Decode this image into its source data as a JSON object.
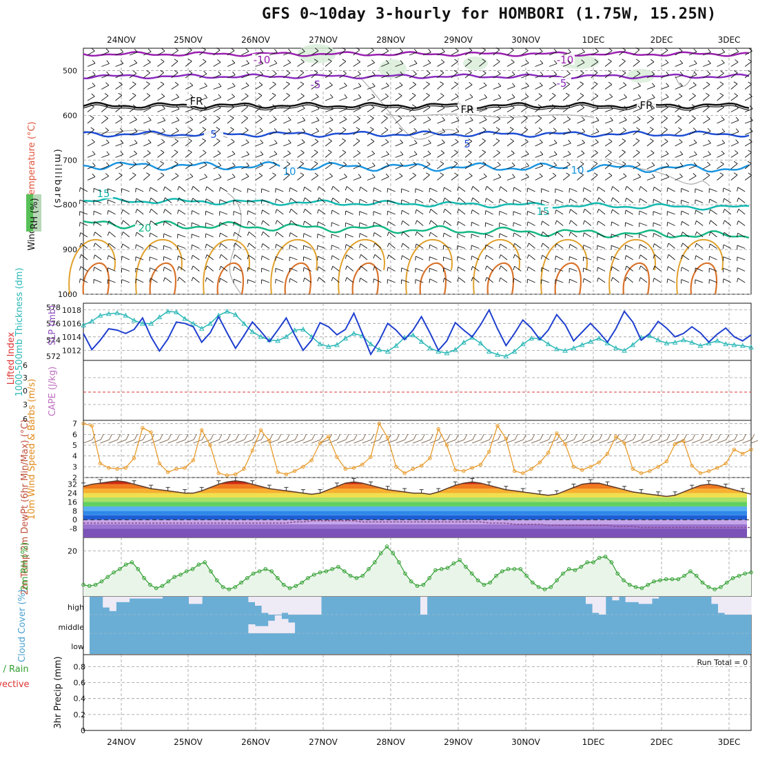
{
  "title": "GFS 0~10day 3-hourly for HOMBORI (1.75W, 15.25N)",
  "dates": [
    "24NOV",
    "25NOV",
    "26NOV",
    "27NOV",
    "28NOV",
    "29NOV",
    "30NOV",
    "1DEC",
    "2DEC",
    "3DEC"
  ],
  "run_total_label": "Run Total = 0",
  "colors": {
    "temp_m10": "#9a1fb0",
    "temp_m5": "#8a2bbf",
    "freezing": "#111111",
    "temp_5": "#1f4fd6",
    "temp_10": "#1b95e0",
    "temp_15": "#13b9b0",
    "temp_20": "#14b884",
    "rh_contour": "#aaaaaa",
    "slp_line": "#1f3fcf",
    "thickness_line": "#2ab7b7",
    "wind_speed_line": "#e89a2a",
    "dewpoint_line": "#8a4a8a",
    "rh2m_line": "#2f9e2f",
    "rh2m_fill": "#eaf5ea",
    "cloud_fill": "#6aaed6",
    "cloud_gap": "#eeeaf6",
    "cape_zero": "#dd3333"
  },
  "chart_data": [
    {
      "panel": "upper-air",
      "type": "contour",
      "ylabel": [
        "Wind (m/s)",
        "Temperature (°C)",
        "RH (%)",
        "(millibars)"
      ],
      "ylim": [
        1000,
        450
      ],
      "yticks": [
        500,
        600,
        700,
        800,
        900,
        1000
      ],
      "contour_labels": [
        {
          "value": "-10",
          "pressure": 470
        },
        {
          "value": "-5",
          "pressure": 515
        },
        {
          "value": "FR",
          "pressure": 580
        },
        {
          "value": "5",
          "pressure": 645
        },
        {
          "value": "10",
          "pressure": 710
        },
        {
          "value": "15",
          "pressure": 785
        },
        {
          "value": "20",
          "pressure": 830
        }
      ]
    },
    {
      "panel": "slp-thickness",
      "type": "line",
      "ylabel_left": "1000-500mb Thickness (dm)",
      "ylabel_right": "SLP (mb)",
      "thickness_ticks": [
        572,
        574,
        576,
        578
      ],
      "thickness_ylim": [
        571.5,
        578.5
      ],
      "slp_ticks": [
        1012,
        1014,
        1016,
        1018
      ],
      "slp_ylim": [
        1010.5,
        1019
      ],
      "slp": [
        1014.5,
        1012.1,
        1013.5,
        1015.2,
        1015.0,
        1014.5,
        1015.1,
        1016.8,
        1014.0,
        1011.9,
        1013.7,
        1016.2,
        1016.0,
        1015.5,
        1013.2,
        1014.6,
        1017.0,
        1014.6,
        1012.3,
        1014.2,
        1016.2,
        1014.8,
        1013.3,
        1015.0,
        1016.8,
        1014.3,
        1012.0,
        1013.5,
        1016.1,
        1015.5,
        1014.3,
        1015.1,
        1017.5,
        1014.5,
        1011.4,
        1013.4,
        1016.0,
        1015.0,
        1013.6,
        1015.0,
        1017.0,
        1014.6,
        1012.0,
        1013.4,
        1016.1,
        1015.0,
        1014.0,
        1015.8,
        1018.0,
        1015.2,
        1012.7,
        1014.5,
        1016.5,
        1015.3,
        1013.6,
        1015.0,
        1017.3,
        1015.8,
        1013.4,
        1014.7,
        1016.0,
        1014.7,
        1013.2,
        1015.2,
        1017.8,
        1016.2,
        1013.5,
        1014.5,
        1016.3,
        1015.3,
        1014.0,
        1014.5,
        1015.5,
        1014.6,
        1013.2,
        1014.4,
        1015.3,
        1014.0,
        1013.4,
        1014.3
      ],
      "thickness": [
        575.8,
        576.3,
        577.0,
        577.2,
        577.3,
        577.0,
        576.4,
        576.0,
        576.0,
        576.8,
        577.5,
        577.4,
        576.6,
        576.0,
        575.4,
        576.0,
        577.0,
        577.5,
        577.1,
        576.0,
        575.0,
        574.4,
        574.0,
        573.9,
        574.4,
        575.2,
        575.3,
        574.4,
        573.5,
        573.2,
        573.4,
        574.2,
        574.8,
        574.5,
        573.5,
        572.8,
        572.6,
        573.3,
        574.3,
        574.6,
        573.8,
        573.0,
        572.6,
        572.4,
        572.8,
        573.7,
        574.3,
        573.6,
        572.6,
        572.2,
        572.0,
        572.6,
        573.5,
        574.2,
        574.2,
        573.5,
        572.9,
        572.7,
        573.0,
        573.4,
        573.8,
        574.2,
        573.6,
        573.0,
        572.7,
        573.4,
        574.3,
        574.5,
        574.0,
        573.6,
        573.7,
        574.0,
        573.7,
        573.3,
        573.6,
        573.9,
        573.5,
        573.4,
        573.3,
        573.1
      ]
    },
    {
      "panel": "li-cape",
      "type": "line",
      "ylabel_left": "Lifted Index",
      "ylabel_right": "CAPE (J/kg)",
      "yticks": [
        "6",
        "3",
        "0",
        "3",
        "6"
      ],
      "ylim": [
        -6,
        6
      ],
      "values": [
        0
      ]
    },
    {
      "panel": "wind10m",
      "type": "line",
      "ylabel": "10m Wind Speed & Barbs (m/s)",
      "yticks": [
        2,
        3,
        4,
        5,
        6,
        7
      ],
      "ylim": [
        2,
        7.3
      ],
      "values": [
        7.0,
        6.8,
        3.3,
        2.9,
        2.8,
        2.9,
        3.8,
        6.6,
        6.2,
        3.3,
        2.5,
        2.8,
        2.9,
        3.6,
        6.4,
        5.0,
        2.4,
        2.2,
        2.3,
        2.8,
        4.5,
        6.4,
        5.4,
        2.5,
        2.3,
        2.6,
        3.0,
        3.6,
        5.2,
        5.8,
        3.9,
        2.8,
        2.9,
        3.2,
        3.9,
        7.0,
        5.7,
        3.0,
        2.4,
        2.8,
        3.1,
        3.8,
        6.5,
        5.0,
        2.7,
        2.6,
        2.9,
        3.2,
        4.4,
        6.8,
        5.6,
        2.6,
        2.4,
        2.8,
        3.4,
        4.3,
        6.1,
        5.1,
        3.0,
        2.7,
        3.0,
        3.4,
        4.2,
        5.8,
        5.2,
        2.8,
        2.4,
        2.6,
        3.0,
        3.5,
        5.1,
        5.4,
        3.1,
        2.4,
        2.6,
        2.9,
        3.3,
        4.6,
        4.2,
        4.6
      ],
      "barb_speed": 5
    },
    {
      "panel": "temp-dewpoint",
      "type": "area",
      "ylabel": "2m Temp 2m DewPt (6hr Min/Max) (°C)",
      "yticks": [
        32,
        24,
        16,
        8,
        0,
        -8
      ],
      "ylim": [
        -16,
        38
      ],
      "temperature": [
        30,
        32,
        33,
        34,
        35,
        34,
        32,
        30,
        28,
        27,
        26,
        25,
        24,
        24,
        26,
        29,
        32,
        34,
        35,
        34,
        32,
        30,
        28,
        27,
        26,
        25,
        24,
        23,
        24,
        27,
        30,
        33,
        34,
        33,
        31,
        29,
        27,
        26,
        25,
        24,
        24,
        23,
        25,
        28,
        31,
        33,
        34,
        33,
        31,
        29,
        27,
        26,
        25,
        24,
        23,
        22,
        23,
        26,
        29,
        32,
        33,
        33,
        31,
        29,
        27,
        25,
        24,
        23,
        22,
        21,
        22,
        25,
        28,
        31,
        32,
        31,
        29,
        27,
        25,
        23
      ],
      "dewpoint": [
        -3,
        -3,
        -3,
        -3,
        -3,
        -3,
        -3,
        -3,
        -3,
        -3,
        -3,
        -3,
        -3,
        -3,
        -3,
        -3,
        -3,
        -3,
        -3,
        -3,
        -3,
        -3,
        -3,
        -3,
        -3,
        -2,
        -2,
        -1,
        -1,
        -1,
        -1,
        -1,
        -1,
        -2,
        -2,
        -2,
        -2,
        -2,
        -2,
        -2,
        -2,
        -2,
        -2,
        -2,
        -2,
        -2,
        -2,
        -2,
        -3,
        -3,
        -3,
        -4,
        -4,
        -4,
        -4,
        -5,
        -5,
        -5,
        -5,
        -5,
        -5,
        -5,
        -5,
        -6,
        -6,
        -6,
        -7,
        -7,
        -7,
        -7,
        -7,
        -7,
        -7,
        -7,
        -7,
        -7,
        -7,
        -7,
        -7,
        -7
      ]
    },
    {
      "panel": "rh2m",
      "type": "line",
      "ylabel": "2m RH (%)",
      "yticks": [
        20
      ],
      "ylim": [
        0,
        26
      ],
      "values": [
        5,
        4.5,
        5,
        6.5,
        8.5,
        10.5,
        12,
        14,
        15,
        12,
        8,
        5,
        3.5,
        4.5,
        6.5,
        8.5,
        9.5,
        11,
        12,
        14,
        15,
        11,
        7,
        4,
        3,
        4,
        6,
        8,
        10,
        11,
        12,
        11,
        8,
        5,
        3.5,
        4.5,
        6,
        8,
        9.5,
        10.5,
        11,
        12,
        13,
        11,
        9,
        8,
        9,
        12,
        15,
        19,
        22,
        19,
        15,
        10,
        6.5,
        4.5,
        5,
        8,
        11.5,
        12,
        12.5,
        14.5,
        16,
        13,
        10,
        7,
        5,
        6,
        9,
        11,
        12,
        12,
        12,
        9,
        6,
        4,
        3,
        4,
        7,
        10,
        12,
        11.5,
        13,
        15,
        15,
        17,
        17.5,
        15,
        10,
        7,
        5,
        4,
        3.5,
        5,
        6.5,
        7,
        7.5,
        7.5,
        7.5,
        9,
        11,
        9,
        6,
        4,
        3,
        4,
        6,
        8,
        9,
        10,
        10.5
      ]
    },
    {
      "panel": "cloud-cover",
      "type": "area",
      "ylabel": "Cloud Cover (%)",
      "levels": [
        "high",
        "middle",
        "low"
      ],
      "high": [
        0,
        0,
        60,
        80,
        30,
        30,
        10,
        10,
        10,
        10,
        10,
        0,
        0,
        0,
        0,
        40,
        40,
        0,
        0,
        0,
        0,
        0,
        0,
        0,
        30,
        50,
        90,
        100,
        100,
        90,
        100,
        100,
        100,
        100,
        100,
        0,
        0,
        0,
        0,
        0,
        0,
        0,
        0,
        0,
        0,
        0,
        0,
        0,
        0,
        0,
        100,
        0,
        0,
        0,
        0,
        0,
        0,
        0,
        0,
        0,
        0,
        0,
        0,
        0,
        0,
        0,
        0,
        0,
        0,
        0,
        0,
        0,
        0,
        0,
        0,
        40,
        90,
        100,
        0,
        20,
        0,
        30,
        30,
        40,
        40,
        10,
        0,
        0,
        0,
        0,
        0,
        0,
        0,
        0,
        40,
        90,
        100,
        100,
        100,
        100
      ],
      "middle": [
        0,
        0,
        0,
        0,
        0,
        0,
        0,
        0,
        0,
        0,
        0,
        0,
        0,
        0,
        0,
        0,
        0,
        0,
        0,
        0,
        0,
        0,
        0,
        0,
        50,
        40,
        40,
        70,
        100,
        80,
        60,
        0,
        0,
        0,
        0,
        0,
        0,
        0,
        0,
        0,
        0,
        0,
        0,
        0,
        0,
        0,
        0,
        0,
        0,
        0,
        0,
        0,
        0,
        0,
        0,
        0,
        0,
        0,
        0,
        0,
        0,
        0,
        0,
        0,
        0,
        0,
        0,
        0,
        0,
        0,
        0,
        0,
        0,
        0,
        0,
        0,
        0,
        0,
        0,
        0,
        0,
        0,
        0,
        0,
        0,
        0,
        0,
        0,
        0,
        0,
        0,
        0,
        0,
        0,
        0,
        0,
        0,
        0,
        0,
        0
      ],
      "low": [
        0
      ]
    },
    {
      "panel": "precip",
      "type": "bar",
      "ylabel_left": "Total / Rain Convective",
      "ylabel_right": "3hr Precip (mm)",
      "yticks": [
        0,
        0.2,
        0.4,
        0.6,
        0.8
      ],
      "ylim": [
        0,
        0.95
      ],
      "values": [
        0
      ]
    }
  ]
}
